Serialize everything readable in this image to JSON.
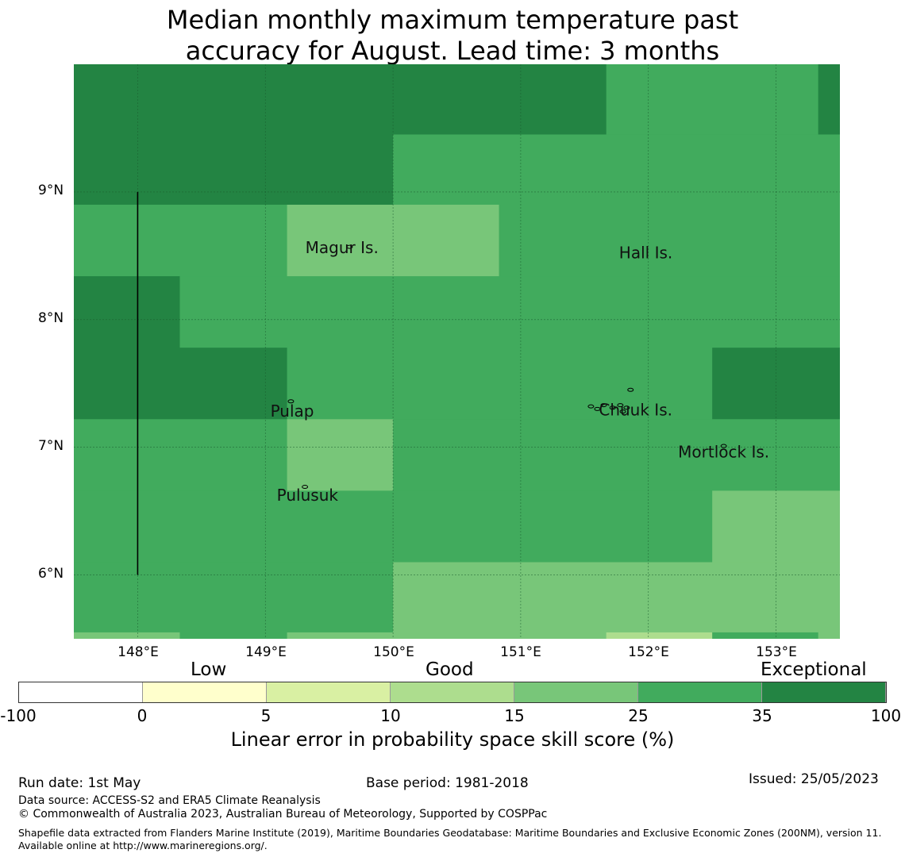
{
  "title": {
    "line1": "Median monthly maximum temperature past",
    "line2": "accuracy for August. Lead time: 3 months"
  },
  "map": {
    "lon_range": [
      147.5,
      153.5
    ],
    "lat_range": [
      5.5,
      10.0
    ],
    "lat_ticks": [
      {
        "label": "9°N",
        "value": 9
      },
      {
        "label": "8°N",
        "value": 8
      },
      {
        "label": "7°N",
        "value": 7
      },
      {
        "label": "6°N",
        "value": 6
      }
    ],
    "lon_ticks": [
      {
        "label": "148°E",
        "value": 148
      },
      {
        "label": "149°E",
        "value": 149
      },
      {
        "label": "150°E",
        "value": 150
      },
      {
        "label": "151°E",
        "value": 151
      },
      {
        "label": "152°E",
        "value": 152
      },
      {
        "label": "153°E",
        "value": 153
      }
    ],
    "places": [
      {
        "name": "Magur Is.",
        "lon": 149.6,
        "lat": 8.52
      },
      {
        "name": "Hall Is.",
        "lon": 151.98,
        "lat": 8.48
      },
      {
        "name": "Pulap",
        "lon": 149.21,
        "lat": 7.24
      },
      {
        "name": "Chuuk Is.",
        "lon": 151.9,
        "lat": 7.25
      },
      {
        "name": "Mortlock Is.",
        "lon": 152.59,
        "lat": 6.92
      },
      {
        "name": "Pulusuk",
        "lon": 149.33,
        "lat": 6.58
      }
    ],
    "skill_cells": [
      {
        "lon": [
          147.5,
          150.0
        ],
        "lat": [
          8.9,
          10.0
        ],
        "category": "35-100"
      },
      {
        "lon": [
          150.0,
          151.67
        ],
        "lat": [
          9.45,
          10.0
        ],
        "category": "35-100"
      },
      {
        "lon": [
          151.67,
          153.33
        ],
        "lat": [
          9.45,
          10.0
        ],
        "category": "25-35"
      },
      {
        "lon": [
          153.33,
          153.5
        ],
        "lat": [
          9.45,
          10.0
        ],
        "category": "35-100"
      },
      {
        "lon": [
          150.0,
          153.5
        ],
        "lat": [
          8.9,
          9.45
        ],
        "category": "25-35"
      },
      {
        "lon": [
          147.5,
          149.17
        ],
        "lat": [
          8.34,
          8.9
        ],
        "category": "25-35"
      },
      {
        "lon": [
          149.17,
          150.83
        ],
        "lat": [
          8.34,
          8.9
        ],
        "category": "15-25"
      },
      {
        "lon": [
          150.83,
          153.5
        ],
        "lat": [
          8.34,
          8.9
        ],
        "category": "25-35"
      },
      {
        "lon": [
          147.5,
          148.33
        ],
        "lat": [
          7.78,
          8.34
        ],
        "category": "35-100"
      },
      {
        "lon": [
          148.33,
          153.5
        ],
        "lat": [
          7.78,
          8.34
        ],
        "category": "25-35"
      },
      {
        "lon": [
          147.5,
          149.17
        ],
        "lat": [
          7.22,
          7.78
        ],
        "category": "35-100"
      },
      {
        "lon": [
          149.17,
          152.5
        ],
        "lat": [
          7.22,
          7.78
        ],
        "category": "25-35"
      },
      {
        "lon": [
          152.5,
          153.5
        ],
        "lat": [
          7.22,
          7.78
        ],
        "category": "35-100"
      },
      {
        "lon": [
          147.5,
          149.17
        ],
        "lat": [
          6.66,
          7.22
        ],
        "category": "25-35"
      },
      {
        "lon": [
          149.17,
          150.0
        ],
        "lat": [
          6.66,
          7.22
        ],
        "category": "15-25"
      },
      {
        "lon": [
          150.0,
          153.5
        ],
        "lat": [
          6.66,
          7.22
        ],
        "category": "25-35"
      },
      {
        "lon": [
          147.5,
          152.5
        ],
        "lat": [
          6.1,
          6.66
        ],
        "category": "25-35"
      },
      {
        "lon": [
          152.5,
          153.5
        ],
        "lat": [
          6.1,
          6.66
        ],
        "category": "15-25"
      },
      {
        "lon": [
          147.5,
          150.0
        ],
        "lat": [
          5.55,
          6.1
        ],
        "category": "25-35"
      },
      {
        "lon": [
          150.0,
          153.5
        ],
        "lat": [
          5.55,
          6.1
        ],
        "category": "15-25"
      },
      {
        "lon": [
          147.5,
          148.33
        ],
        "lat": [
          5.5,
          5.55
        ],
        "category": "15-25"
      },
      {
        "lon": [
          148.33,
          149.17
        ],
        "lat": [
          5.5,
          5.55
        ],
        "category": "25-35"
      },
      {
        "lon": [
          149.17,
          150.0
        ],
        "lat": [
          5.5,
          5.55
        ],
        "category": "15-25"
      },
      {
        "lon": [
          150.0,
          151.67
        ],
        "lat": [
          5.5,
          5.55
        ],
        "category": "15-25"
      },
      {
        "lon": [
          151.67,
          152.5
        ],
        "lat": [
          5.5,
          5.55
        ],
        "category": "10-15"
      },
      {
        "lon": [
          152.5,
          153.33
        ],
        "lat": [
          5.5,
          5.55
        ],
        "category": "25-35"
      },
      {
        "lon": [
          153.33,
          153.5
        ],
        "lat": [
          5.5,
          5.55
        ],
        "category": "15-25"
      }
    ],
    "boundary_line": {
      "lon": 148.0,
      "lat": [
        6.0,
        9.0
      ]
    }
  },
  "legend": {
    "categories": [
      {
        "label": "Low",
        "center_value": "0-5"
      },
      {
        "label": "Good",
        "center_value": "10-15"
      },
      {
        "label": "Exceptional",
        "center_value": "35-100"
      }
    ],
    "bins": [
      {
        "range": "-100-0",
        "color": "#ffffff"
      },
      {
        "range": "0-5",
        "color": "#ffffcc"
      },
      {
        "range": "5-10",
        "color": "#d9f0a3"
      },
      {
        "range": "10-15",
        "color": "#addd8e"
      },
      {
        "range": "15-25",
        "color": "#78c679"
      },
      {
        "range": "25-35",
        "color": "#41ab5d"
      },
      {
        "range": "35-100",
        "color": "#238443"
      }
    ],
    "ticks": [
      "-100",
      "0",
      "5",
      "10",
      "15",
      "25",
      "35",
      "100"
    ],
    "label": "Linear error in probability space skill score (%)"
  },
  "footer": {
    "run_date": "Run date: 1st May",
    "base_period": "Base period: 1981-2018",
    "issued": "Issued: 25/05/2023",
    "data_source": "Data source: ACCESS-S2 and ERA5 Climate Reanalysis",
    "copyright": "© Commonwealth of Australia 2023, Australian Bureau of Meteorology, Supported by COSPPac",
    "shapefile": "Shapefile data extracted from Flanders Marine Institute (2019), Maritime Boundaries Geodatabase: Maritime Boundaries and Exclusive Economic Zones (200NM), version 11. Available online at http://www.marineregions.org/."
  }
}
